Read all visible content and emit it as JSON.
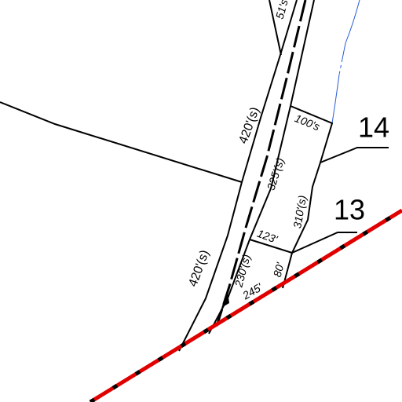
{
  "labels": [
    "51's",
    "420'(s)",
    "100's",
    "14",
    "325'(s)",
    "310'(s)",
    "13",
    "123'",
    "230'(s)",
    "80'",
    "245'",
    "420'(s)"
  ]
}
